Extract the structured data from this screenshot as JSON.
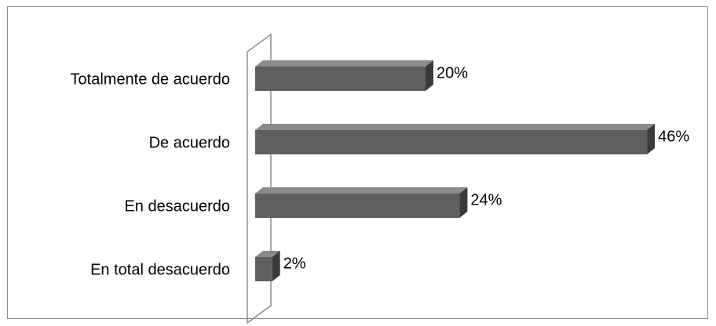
{
  "chart_data": {
    "type": "bar",
    "orientation": "horizontal",
    "style": "3d",
    "categories": [
      "Totalmente de acuerdo",
      "De acuerdo",
      "En desacuerdo",
      "En total desacuerdo"
    ],
    "values": [
      20,
      46,
      24,
      2
    ],
    "data_labels": [
      "20%",
      "46%",
      "24%",
      "2%"
    ],
    "title": "",
    "xlabel": "",
    "ylabel": "",
    "xlim": [
      0,
      46
    ],
    "grid": false,
    "legend": "none",
    "colors": {
      "bar_front": "#5f5f5f",
      "bar_top": "#8a8a8a",
      "bar_side": "#3a3a3a",
      "axis_wall": "#8c8c8c"
    }
  }
}
